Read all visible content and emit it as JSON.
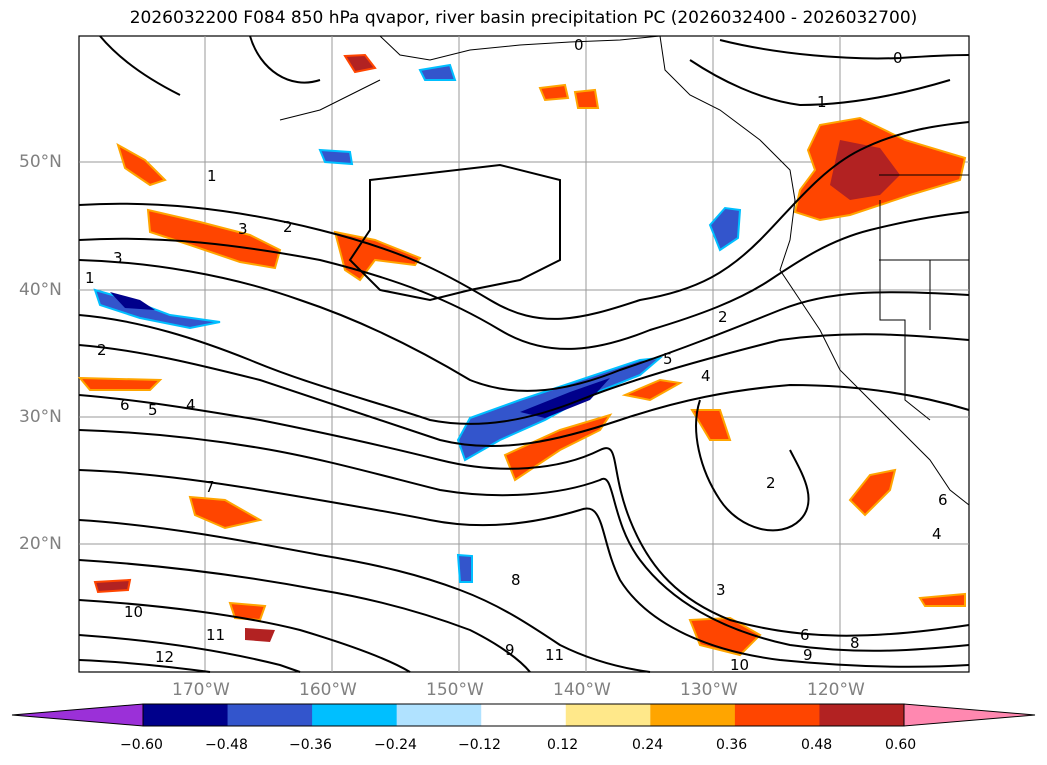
{
  "title": "2026032200 F084 850 hPa qvapor, river basin precipitation PC (2026032400 - 2026032700)",
  "map": {
    "lat_labels": [
      "50°N",
      "40°N",
      "30°N",
      "20°N"
    ],
    "lon_labels": [
      "170°W",
      "160°W",
      "150°W",
      "140°W",
      "130°W",
      "120°W"
    ],
    "contour_labels": [
      "0",
      "1",
      "2",
      "3",
      "4",
      "5",
      "6",
      "7",
      "8",
      "9",
      "10",
      "11",
      "12"
    ],
    "ocean_color": "#ffffff",
    "contour_color": "#000000",
    "grid_color": "#9a9a9a"
  },
  "colorbar": {
    "ticks": [
      "−0.60",
      "−0.48",
      "−0.36",
      "−0.24",
      "−0.12",
      "0.12",
      "0.24",
      "0.36",
      "0.48",
      "0.60"
    ],
    "colors": [
      "#9b30d8",
      "#00008b",
      "#3355cc",
      "#00bfff",
      "#b0e2ff",
      "#ffffff",
      "#ffe88a",
      "#ffa500",
      "#ff4500",
      "#b22222",
      "#ff88b0"
    ]
  }
}
